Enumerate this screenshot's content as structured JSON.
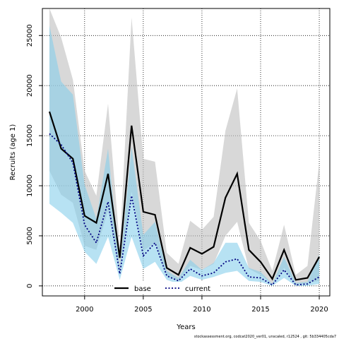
{
  "chart_data": {
    "type": "area",
    "title": "",
    "xlabel": "Years",
    "ylabel": "Recruits (age 1)",
    "xlim": [
      1996.4,
      2020.9
    ],
    "ylim": [
      -1000,
      27700
    ],
    "x_ticks": [
      2000,
      2005,
      2010,
      2015,
      2020
    ],
    "y_ticks": [
      0,
      5000,
      10000,
      15000,
      20000,
      25000
    ],
    "grid": true,
    "legend_position": "bottom-left",
    "x": [
      1997,
      1998,
      1999,
      2000,
      2001,
      2002,
      2003,
      2004,
      2005,
      2006,
      2007,
      2008,
      2009,
      2010,
      2011,
      2012,
      2013,
      2014,
      2015,
      2016,
      2017,
      2018,
      2019,
      2020
    ],
    "series": [
      {
        "name": "base",
        "color": "#000000",
        "band_color": "#bebebe",
        "line_style": "solid",
        "values": [
          17400,
          13700,
          12700,
          7000,
          6300,
          11200,
          2800,
          16000,
          7400,
          7100,
          1800,
          1100,
          3800,
          3200,
          3900,
          8800,
          11200,
          3600,
          2400,
          700,
          3600,
          600,
          800,
          2900
        ],
        "upper": [
          27700,
          24800,
          20600,
          11500,
          9000,
          18200,
          4000,
          26800,
          12700,
          12400,
          3300,
          2200,
          6500,
          5600,
          6900,
          15500,
          19700,
          6300,
          4500,
          1500,
          6100,
          1100,
          2000,
          12300
        ],
        "lower": [
          11500,
          9100,
          8300,
          4000,
          3600,
          7500,
          1300,
          9400,
          3500,
          4300,
          1000,
          500,
          2000,
          1600,
          2200,
          5000,
          6400,
          1700,
          1100,
          200,
          1800,
          100,
          300,
          500
        ]
      },
      {
        "name": "current",
        "color": "#000080",
        "band_color": "#87ceeb",
        "line_style": "dotted",
        "values": [
          15200,
          14100,
          12300,
          6100,
          4300,
          8400,
          1200,
          9000,
          3000,
          4300,
          1000,
          500,
          1700,
          1000,
          1300,
          2400,
          2700,
          900,
          800,
          100,
          1600,
          100,
          200,
          900
        ],
        "upper": [
          26000,
          20400,
          19100,
          10100,
          6700,
          13700,
          1800,
          13900,
          5100,
          6400,
          1500,
          800,
          2600,
          1600,
          2300,
          4300,
          4300,
          1800,
          1400,
          200,
          2900,
          300,
          400,
          3100
        ],
        "lower": [
          8200,
          7300,
          6300,
          3400,
          2200,
          4900,
          600,
          4900,
          1700,
          2400,
          600,
          200,
          1000,
          600,
          900,
          1300,
          1500,
          500,
          400,
          0,
          800,
          0,
          0,
          200
        ]
      }
    ],
    "footer_note": "stockassessment.org, codcat2020_ver01, unscaled, r12524 , git: 5b334405cda7"
  }
}
